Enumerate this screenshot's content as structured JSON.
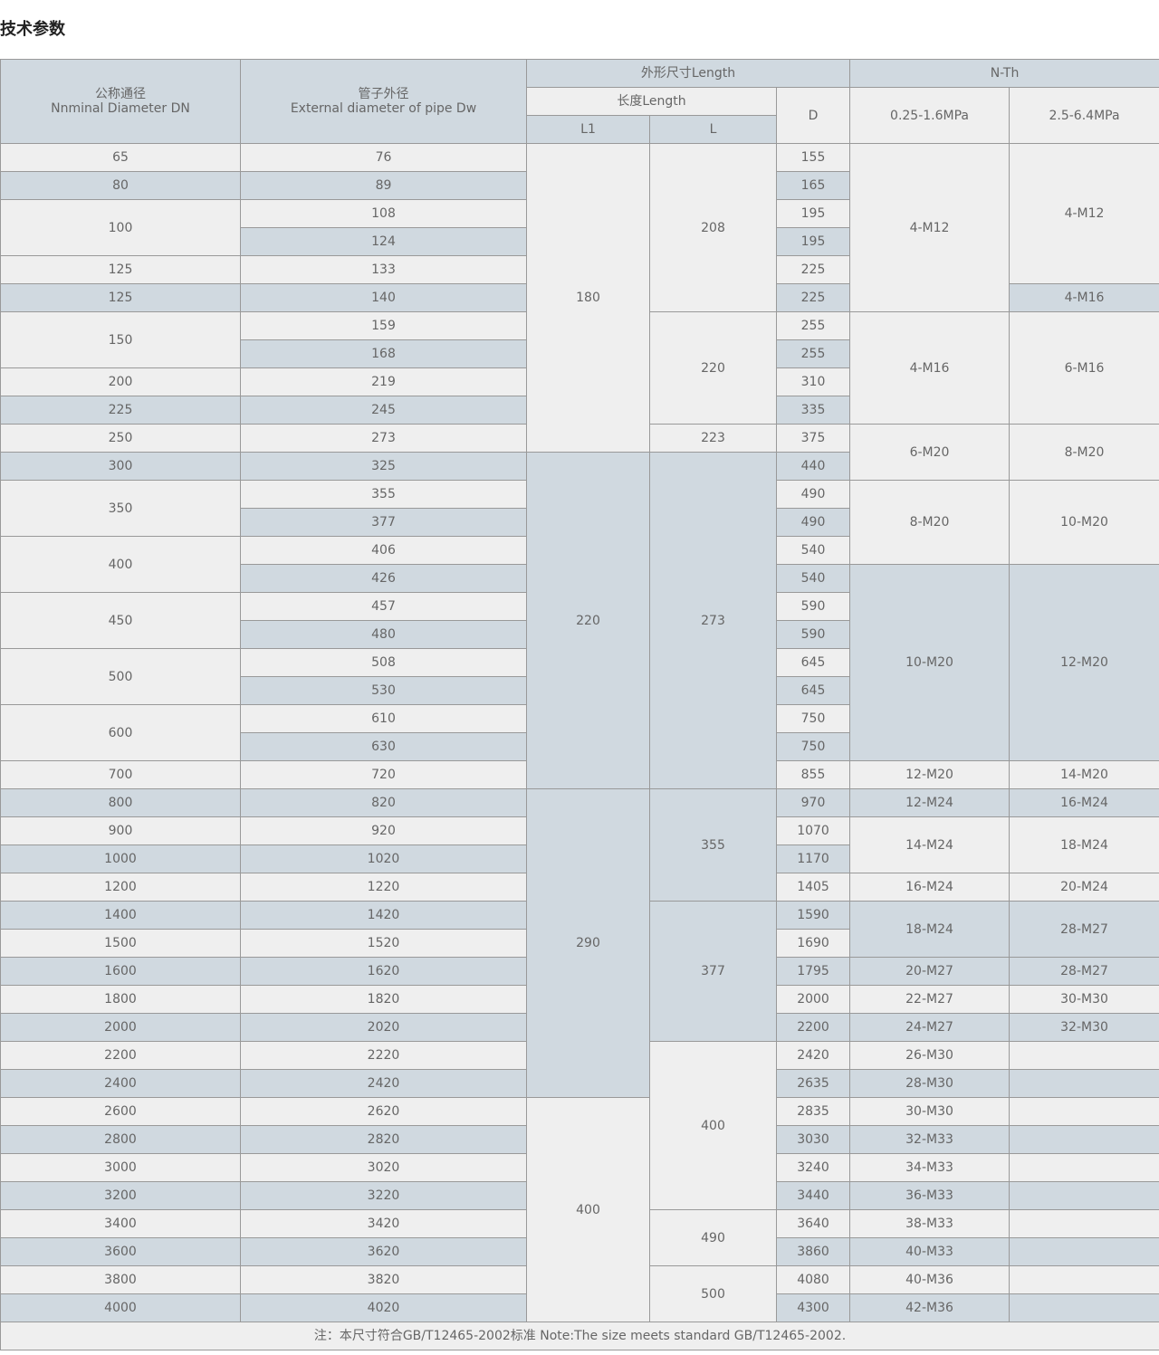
{
  "title": "技术参数",
  "header": {
    "dn": [
      "公称通径",
      "Nnminal Diameter DN"
    ],
    "dw": [
      "管子外径",
      "External diameter of pipe Dw"
    ],
    "size": "外形尺寸Length",
    "length": "长度Length",
    "l1": "L1",
    "l": "L",
    "d": "D",
    "nth": "N-Th",
    "p1": "0.25-1.6MPa",
    "p2": "2.5-6.4MPa"
  },
  "colors": {
    "light": "#efefef",
    "blue": "#d0d9e0",
    "border": "#999999"
  },
  "columns": {
    "dn": [
      [
        "65",
        1
      ],
      [
        "80",
        1
      ],
      [
        "100",
        2
      ],
      [
        "125",
        1
      ],
      [
        "125",
        1
      ],
      [
        "150",
        2
      ],
      [
        "200",
        1
      ],
      [
        "225",
        1
      ],
      [
        "250",
        1
      ],
      [
        "300",
        1
      ],
      [
        "350",
        2
      ],
      [
        "400",
        2
      ],
      [
        "450",
        2
      ],
      [
        "500",
        2
      ],
      [
        "600",
        2
      ],
      [
        "700",
        1
      ],
      [
        "800",
        1
      ],
      [
        "900",
        1
      ],
      [
        "1000",
        1
      ],
      [
        "1200",
        1
      ],
      [
        "1400",
        1
      ],
      [
        "1500",
        1
      ],
      [
        "1600",
        1
      ],
      [
        "1800",
        1
      ],
      [
        "2000",
        1
      ],
      [
        "2200",
        1
      ],
      [
        "2400",
        1
      ],
      [
        "2600",
        1
      ],
      [
        "2800",
        1
      ],
      [
        "3000",
        1
      ],
      [
        "3200",
        1
      ],
      [
        "3400",
        1
      ],
      [
        "3600",
        1
      ],
      [
        "3800",
        1
      ],
      [
        "4000",
        1
      ]
    ],
    "dw": [
      [
        "76",
        1
      ],
      [
        "89",
        1
      ],
      [
        "108",
        1
      ],
      [
        "124",
        1
      ],
      [
        "133",
        1
      ],
      [
        "140",
        1
      ],
      [
        "159",
        1
      ],
      [
        "168",
        1
      ],
      [
        "219",
        1
      ],
      [
        "245",
        1
      ],
      [
        "273",
        1
      ],
      [
        "325",
        1
      ],
      [
        "355",
        1
      ],
      [
        "377",
        1
      ],
      [
        "406",
        1
      ],
      [
        "426",
        1
      ],
      [
        "457",
        1
      ],
      [
        "480",
        1
      ],
      [
        "508",
        1
      ],
      [
        "530",
        1
      ],
      [
        "610",
        1
      ],
      [
        "630",
        1
      ],
      [
        "720",
        1
      ],
      [
        "820",
        1
      ],
      [
        "920",
        1
      ],
      [
        "1020",
        1
      ],
      [
        "1220",
        1
      ],
      [
        "1420",
        1
      ],
      [
        "1520",
        1
      ],
      [
        "1620",
        1
      ],
      [
        "1820",
        1
      ],
      [
        "2020",
        1
      ],
      [
        "2220",
        1
      ],
      [
        "2420",
        1
      ],
      [
        "2620",
        1
      ],
      [
        "2820",
        1
      ],
      [
        "3020",
        1
      ],
      [
        "3220",
        1
      ],
      [
        "3420",
        1
      ],
      [
        "3620",
        1
      ],
      [
        "3820",
        1
      ],
      [
        "4020",
        1
      ]
    ],
    "l1": [
      [
        "180",
        11
      ],
      [
        "220",
        12
      ],
      [
        "290",
        11
      ],
      [
        "400",
        8
      ]
    ],
    "l": [
      [
        "208",
        6
      ],
      [
        "220",
        4
      ],
      [
        "223",
        1
      ],
      [
        "273",
        12
      ],
      [
        "355",
        4
      ],
      [
        "377",
        5
      ],
      [
        "400",
        6
      ],
      [
        "490",
        2
      ],
      [
        "500",
        2
      ]
    ],
    "d": [
      [
        "155",
        1
      ],
      [
        "165",
        1
      ],
      [
        "195",
        1
      ],
      [
        "195",
        1
      ],
      [
        "225",
        1
      ],
      [
        "225",
        1
      ],
      [
        "255",
        1
      ],
      [
        "255",
        1
      ],
      [
        "310",
        1
      ],
      [
        "335",
        1
      ],
      [
        "375",
        1
      ],
      [
        "440",
        1
      ],
      [
        "490",
        1
      ],
      [
        "490",
        1
      ],
      [
        "540",
        1
      ],
      [
        "540",
        1
      ],
      [
        "590",
        1
      ],
      [
        "590",
        1
      ],
      [
        "645",
        1
      ],
      [
        "645",
        1
      ],
      [
        "750",
        1
      ],
      [
        "750",
        1
      ],
      [
        "855",
        1
      ],
      [
        "970",
        1
      ],
      [
        "1070",
        1
      ],
      [
        "1170",
        1
      ],
      [
        "1405",
        1
      ],
      [
        "1590",
        1
      ],
      [
        "1690",
        1
      ],
      [
        "1795",
        1
      ],
      [
        "2000",
        1
      ],
      [
        "2200",
        1
      ],
      [
        "2420",
        1
      ],
      [
        "2635",
        1
      ],
      [
        "2835",
        1
      ],
      [
        "3030",
        1
      ],
      [
        "3240",
        1
      ],
      [
        "3440",
        1
      ],
      [
        "3640",
        1
      ],
      [
        "3860",
        1
      ],
      [
        "4080",
        1
      ],
      [
        "4300",
        1
      ]
    ],
    "p1": [
      [
        "4-M12",
        6
      ],
      [
        "4-M16",
        4
      ],
      [
        "6-M20",
        2
      ],
      [
        "8-M20",
        3
      ],
      [
        "10-M20",
        7
      ],
      [
        "12-M20",
        1
      ],
      [
        "12-M24",
        1
      ],
      [
        "14-M24",
        2
      ],
      [
        "16-M24",
        1
      ],
      [
        "18-M24",
        2
      ],
      [
        "20-M27",
        1
      ],
      [
        "22-M27",
        1
      ],
      [
        "24-M27",
        1
      ],
      [
        "26-M30",
        1
      ],
      [
        "28-M30",
        1
      ],
      [
        "30-M30",
        1
      ],
      [
        "32-M33",
        1
      ],
      [
        "34-M33",
        1
      ],
      [
        "36-M33",
        1
      ],
      [
        "38-M33",
        1
      ],
      [
        "40-M33",
        1
      ],
      [
        "40-M36",
        1
      ],
      [
        "42-M36",
        1
      ]
    ],
    "p2": [
      [
        "4-M12",
        5
      ],
      [
        "4-M16",
        1
      ],
      [
        "6-M16",
        4
      ],
      [
        "8-M20",
        2
      ],
      [
        "10-M20",
        3
      ],
      [
        "12-M20",
        7
      ],
      [
        "14-M20",
        1
      ],
      [
        "16-M24",
        1
      ],
      [
        "18-M24",
        2
      ],
      [
        "20-M24",
        1
      ],
      [
        "28-M27",
        2
      ],
      [
        "28-M27",
        1
      ],
      [
        "30-M30",
        1
      ],
      [
        "32-M30",
        1
      ],
      [
        "",
        1
      ],
      [
        "",
        1
      ],
      [
        "",
        1
      ],
      [
        "",
        1
      ],
      [
        "",
        1
      ],
      [
        "",
        1
      ],
      [
        "",
        1
      ],
      [
        "",
        1
      ],
      [
        "",
        1
      ],
      [
        "",
        1
      ]
    ]
  },
  "note": "注：本尺寸符合GB/T12465-2002标准 Note:The size meets standard GB/T12465-2002."
}
